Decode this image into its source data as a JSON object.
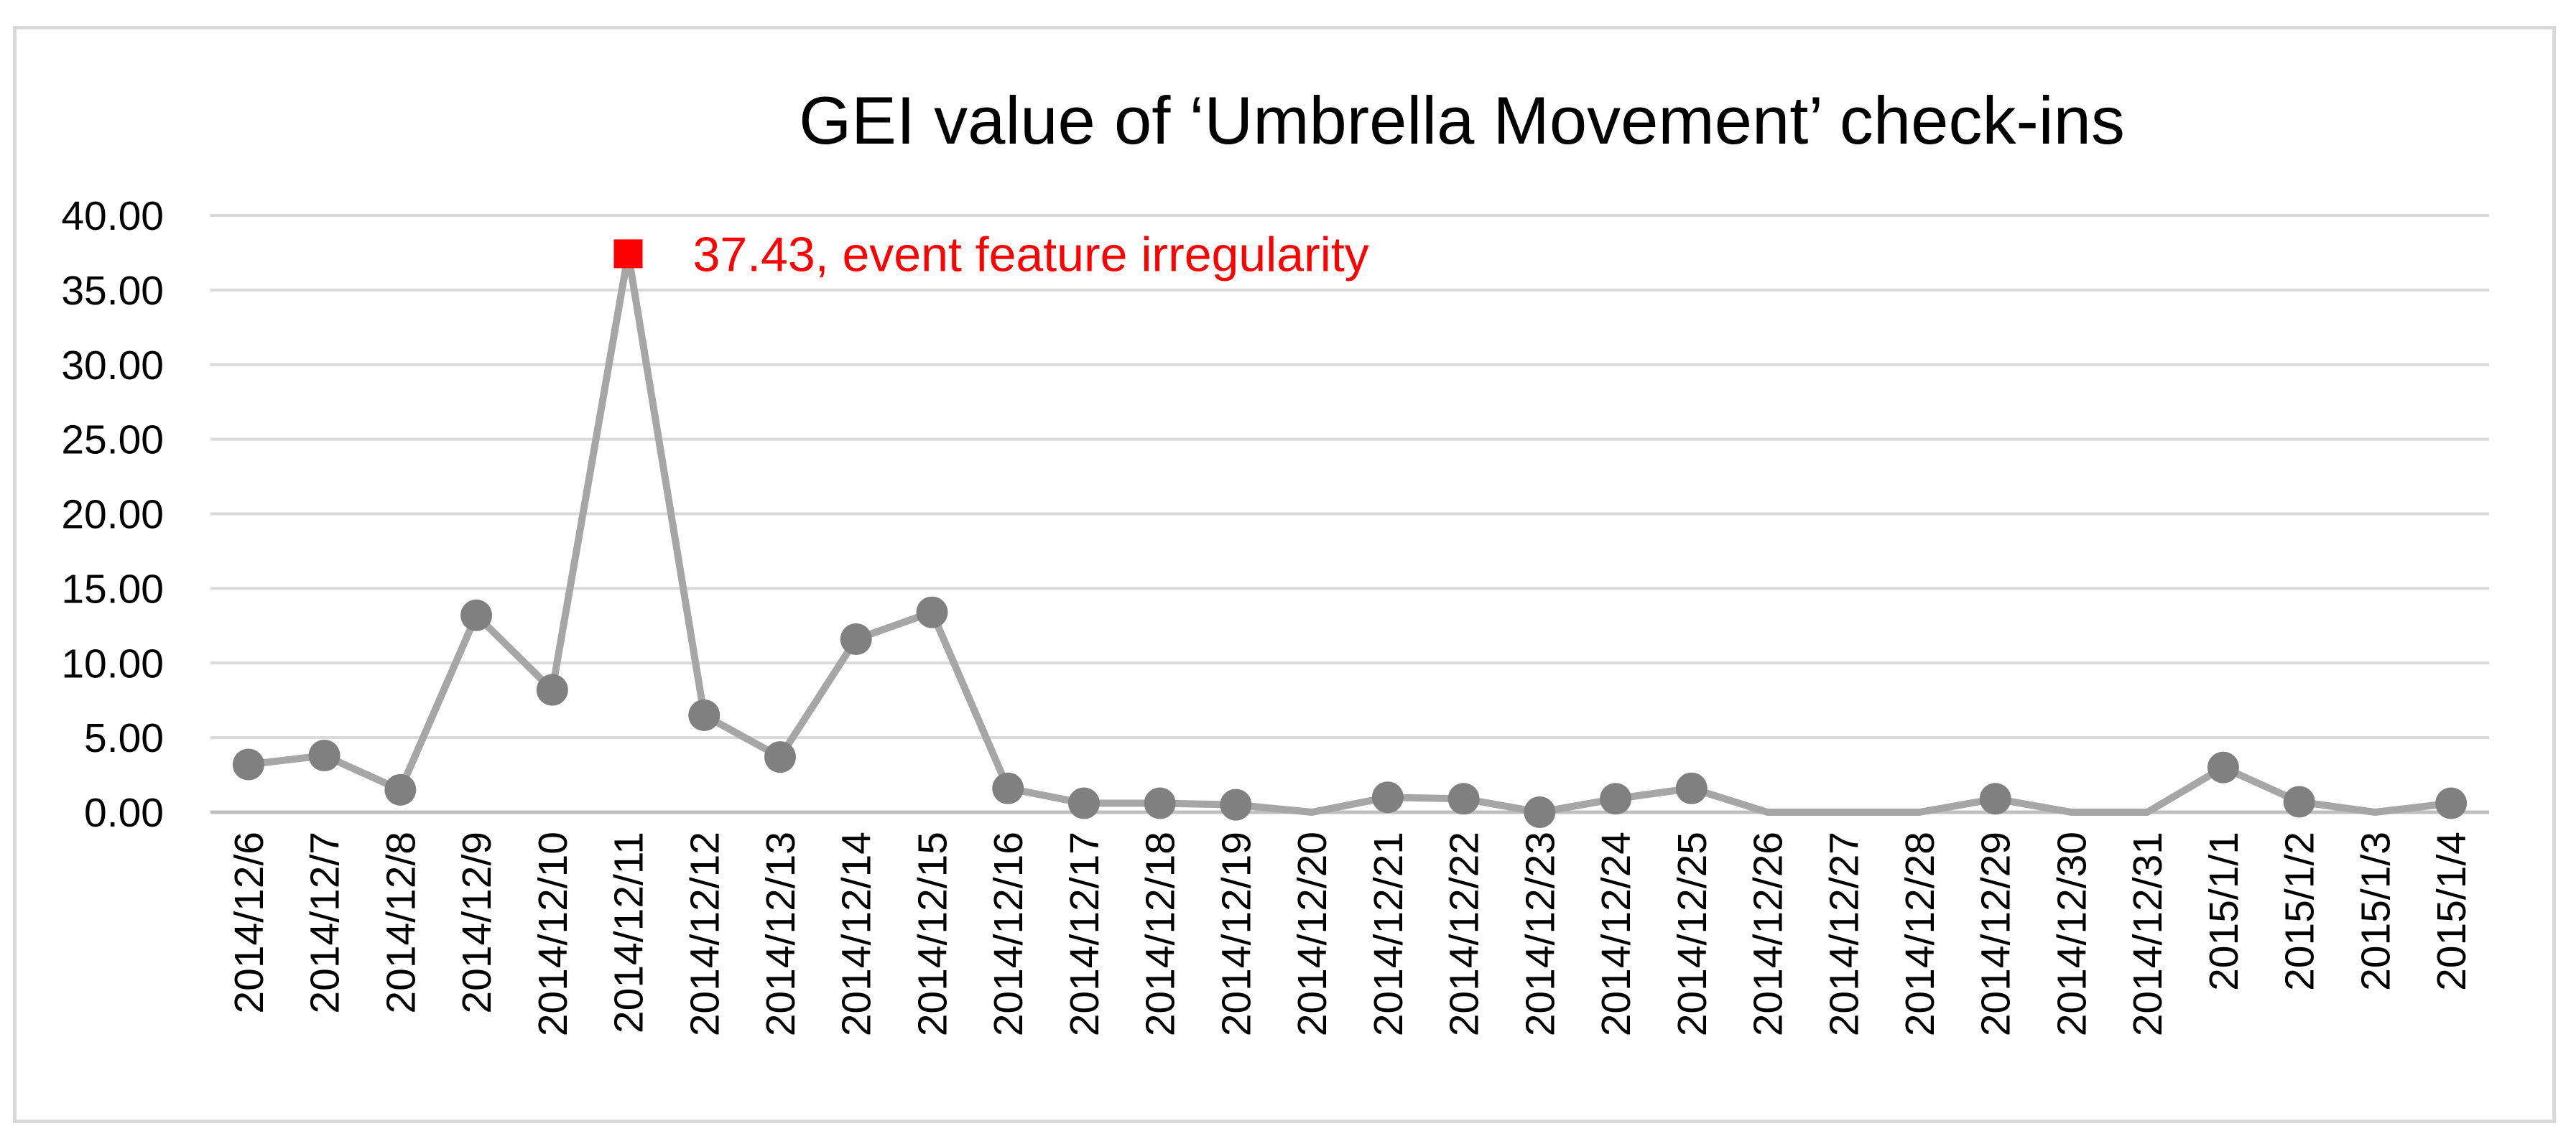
{
  "chart_data": {
    "type": "line",
    "title": "GEI value of ‘Umbrella Movement’ check-ins",
    "xlabel": "",
    "ylabel": "",
    "ylim": [
      0,
      40
    ],
    "ytick_labels": [
      "0.00",
      "5.00",
      "10.00",
      "15.00",
      "20.00",
      "25.00",
      "30.00",
      "35.00",
      "40.00"
    ],
    "grid": "horizontal",
    "legend": "none",
    "categories": [
      "2014/12/6",
      "2014/12/7",
      "2014/12/8",
      "2014/12/9",
      "2014/12/10",
      "2014/12/11",
      "2014/12/12",
      "2014/12/13",
      "2014/12/14",
      "2014/12/15",
      "2014/12/16",
      "2014/12/17",
      "2014/12/18",
      "2014/12/19",
      "2014/12/20",
      "2014/12/21",
      "2014/12/22",
      "2014/12/23",
      "2014/12/24",
      "2014/12/25",
      "2014/12/26",
      "2014/12/27",
      "2014/12/28",
      "2014/12/29",
      "2014/12/30",
      "2014/12/31",
      "2015/1/1",
      "2015/1/2",
      "2015/1/3",
      "2015/1/4"
    ],
    "series": [
      {
        "values": [
          3.2,
          3.8,
          1.5,
          13.2,
          8.2,
          37.43,
          6.5,
          3.7,
          11.6,
          13.4,
          1.6,
          0.6,
          0.6,
          0.5,
          0.0,
          1.0,
          0.9,
          0.0,
          0.9,
          1.6,
          0.0,
          0.0,
          0.0,
          0.9,
          0.0,
          0.0,
          3.0,
          0.7,
          0.0,
          0.6
        ],
        "markers": [
          true,
          true,
          true,
          true,
          true,
          false,
          true,
          true,
          true,
          true,
          true,
          true,
          true,
          true,
          false,
          true,
          true,
          true,
          true,
          true,
          false,
          false,
          false,
          true,
          false,
          false,
          true,
          true,
          false,
          true
        ],
        "color": "#a6a6a6",
        "marker_color": "#808080"
      }
    ],
    "annotations": [
      {
        "category": "2014/12/11",
        "value": 37.43,
        "text": "37.43, event feature irregularity",
        "color": "#ff0000",
        "marker": "square"
      }
    ],
    "gridline_color": "#d9d9d9",
    "axis_color": "#bfbfbf"
  }
}
